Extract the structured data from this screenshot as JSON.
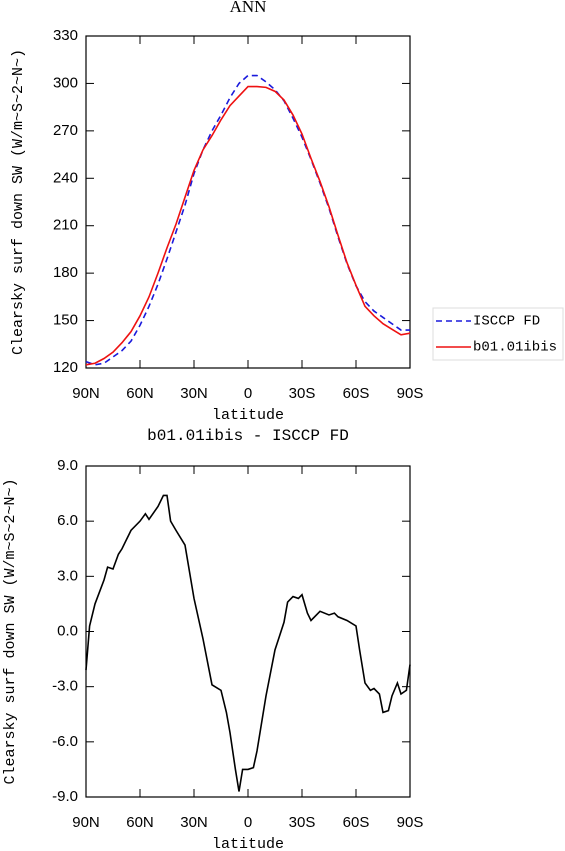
{
  "chart_data": [
    {
      "type": "line",
      "title": "ANN",
      "xlabel": "latitude",
      "ylabel": "Clearsky surf down SW (W/m~S~2~N~)",
      "x": [
        90,
        85,
        80,
        75,
        70,
        65,
        60,
        55,
        50,
        45,
        40,
        35,
        30,
        25,
        20,
        15,
        10,
        5,
        0,
        -5,
        -10,
        -15,
        -20,
        -25,
        -30,
        -35,
        -40,
        -45,
        -50,
        -55,
        -60,
        -65,
        -70,
        -75,
        -80,
        -85,
        -90
      ],
      "series": [
        {
          "name": "ISCCP FD",
          "color": "#1a1adc",
          "dash": true,
          "values": [
            124,
            122,
            123,
            127,
            131,
            137,
            147,
            159,
            173,
            189,
            206,
            223,
            243,
            258,
            270,
            280,
            291,
            300,
            305,
            305,
            301,
            296,
            289,
            278,
            266,
            252,
            237,
            221,
            203,
            186,
            172,
            162,
            156,
            152,
            148,
            144,
            144
          ]
        },
        {
          "name": "b01.01ibis",
          "color": "#ee1111",
          "dash": false,
          "values": [
            122,
            123,
            126,
            130,
            136,
            143,
            153,
            165,
            180,
            196,
            211,
            228,
            245,
            258,
            267,
            277,
            286,
            292,
            298,
            298,
            297.5,
            295,
            289.5,
            280,
            268,
            252.6,
            238,
            222,
            204,
            186.6,
            172.3,
            159,
            153,
            148,
            144.5,
            141,
            142
          ]
        }
      ],
      "xlim": [
        90,
        -90
      ],
      "xticks": [
        {
          "value": 90,
          "label": "90N"
        },
        {
          "value": 60,
          "label": "60N"
        },
        {
          "value": 30,
          "label": "30N"
        },
        0,
        {
          "value": -30,
          "label": "30S"
        },
        {
          "value": -60,
          "label": "60S"
        },
        {
          "value": -90,
          "label": "90S"
        }
      ],
      "ylim": [
        120,
        330
      ],
      "yticks": [
        120,
        150,
        180,
        210,
        240,
        270,
        300,
        330
      ],
      "legend": "right"
    },
    {
      "type": "line",
      "title": "b01.01ibis - ISCCP FD",
      "xlabel": "latitude",
      "ylabel": "Clearsky surf down SW (W/m~S~2~N~)",
      "x": [
        90,
        88,
        85,
        80,
        78,
        75,
        72,
        70,
        65,
        60,
        57,
        55,
        50,
        47,
        45,
        43,
        40,
        35,
        30,
        25,
        20,
        15,
        12,
        10,
        7,
        5,
        3,
        0,
        -3,
        -5,
        -10,
        -15,
        -20,
        -22,
        -25,
        -28,
        -30,
        -33,
        -35,
        -40,
        -45,
        -48,
        -50,
        -55,
        -60,
        -62,
        -65,
        -68,
        -70,
        -73,
        -75,
        -78,
        -80,
        -83,
        -85,
        -88,
        -90
      ],
      "series": [
        {
          "color": "#000000",
          "dash": false,
          "values": [
            -2.1,
            0.3,
            1.5,
            2.8,
            3.5,
            3.4,
            4.2,
            4.5,
            5.5,
            6.0,
            6.4,
            6.1,
            6.8,
            7.4,
            7.4,
            6.0,
            5.5,
            4.7,
            1.8,
            -0.4,
            -2.9,
            -3.2,
            -4.4,
            -5.5,
            -7.5,
            -8.7,
            -7.5,
            -7.5,
            -7.4,
            -6.5,
            -3.5,
            -1.0,
            0.5,
            1.6,
            1.9,
            1.8,
            2.0,
            1.0,
            0.6,
            1.1,
            0.9,
            1.0,
            0.8,
            0.6,
            0.3,
            -1.0,
            -2.8,
            -3.2,
            -3.1,
            -3.4,
            -4.4,
            -4.3,
            -3.5,
            -2.8,
            -3.4,
            -3.2,
            -1.8
          ]
        }
      ],
      "xlim": [
        90,
        -90
      ],
      "xticks": [
        {
          "value": 90,
          "label": "90N"
        },
        {
          "value": 60,
          "label": "60N"
        },
        {
          "value": 30,
          "label": "30N"
        },
        0,
        {
          "value": -30,
          "label": "30S"
        },
        {
          "value": -60,
          "label": "60S"
        },
        {
          "value": -90,
          "label": "90S"
        }
      ],
      "ylim": [
        -9,
        9
      ],
      "yticks": [
        {
          "value": -9,
          "label": "-9.0"
        },
        {
          "value": -6,
          "label": "-6.0"
        },
        {
          "value": -3,
          "label": "-3.0"
        },
        {
          "value": 0,
          "label": "0.0"
        },
        {
          "value": 3,
          "label": "3.0"
        },
        {
          "value": 6,
          "label": "6.0"
        },
        {
          "value": 9,
          "label": "9.0"
        }
      ]
    }
  ]
}
